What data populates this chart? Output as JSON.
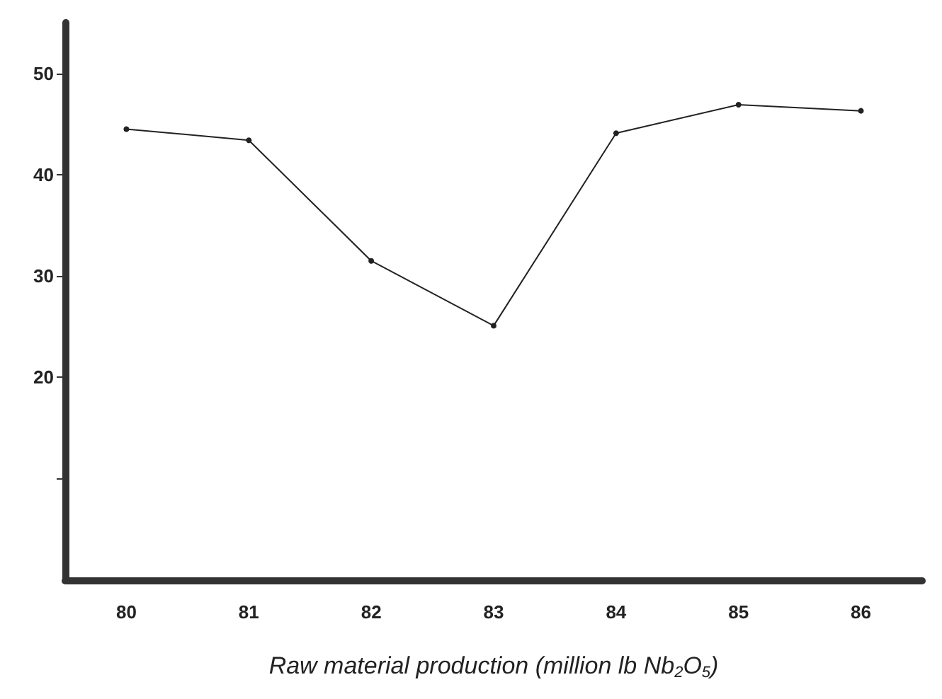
{
  "chart_data": {
    "type": "line",
    "xlabel": "Raw material production (million lb Nb$_{2}$O$_{5}$)",
    "categories": [
      "80",
      "81",
      "82",
      "83",
      "84",
      "85",
      "86"
    ],
    "series": [
      {
        "color": "#222222",
        "values": [
          44.5,
          43.4,
          31.5,
          25.1,
          44.1,
          46.9,
          46.3
        ]
      }
    ],
    "ylim": [
      0,
      55
    ],
    "yticks": [
      {
        "value": 10,
        "label": null
      },
      20,
      30,
      40,
      50
    ],
    "marker": "circle",
    "line_style": "solid"
  }
}
